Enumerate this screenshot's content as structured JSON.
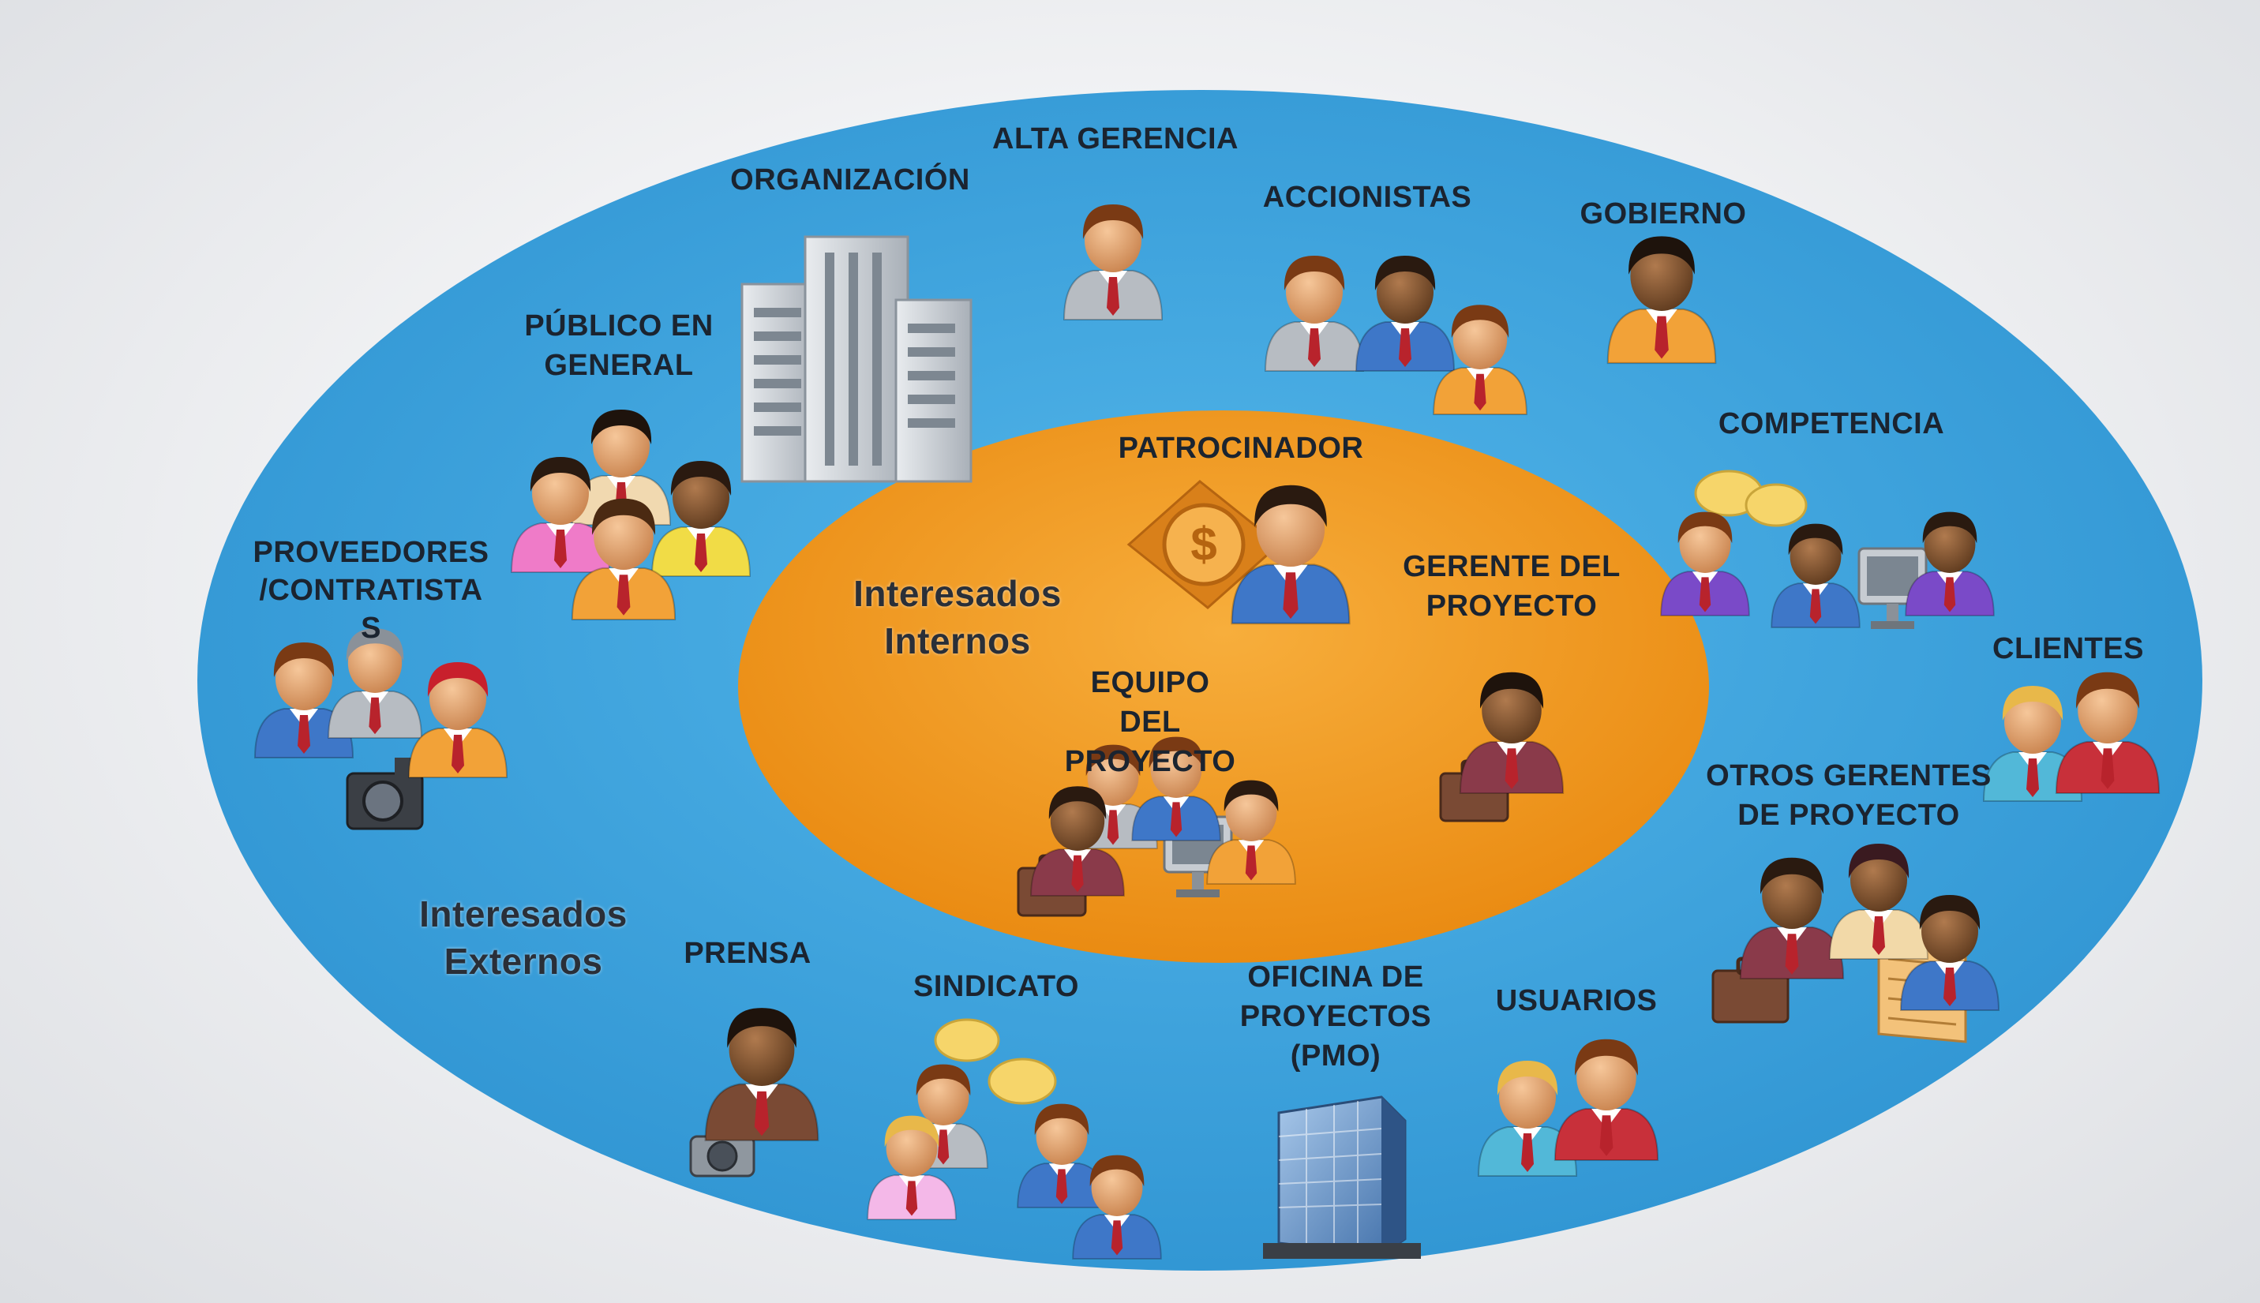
{
  "colors": {
    "outer_ellipse": "#3ea6e0",
    "inner_ellipse": "#f29a22",
    "label_text": "#1b2430"
  },
  "groups": {
    "internal": "Interesados\nInternos",
    "external": "Interesados\nExternos"
  },
  "internal_stakeholders": {
    "patrocinador": "PATROCINADOR",
    "gerente_proyecto": "GERENTE DEL\nPROYECTO",
    "equipo_proyecto": "EQUIPO\nDEL\nPROYECTO"
  },
  "external_stakeholders": {
    "alta_gerencia": "ALTA GERENCIA",
    "organizacion": "ORGANIZACIÓN",
    "accionistas": "ACCIONISTAS",
    "gobierno": "GOBIERNO",
    "publico_general": "PÚBLICO EN\nGENERAL",
    "competencia": "COMPETENCIA",
    "proveedores": "PROVEEDORES\n/CONTRATISTA\nS",
    "clientes": "CLIENTES",
    "otros_gerentes": "OTROS GERENTES\nDE PROYECTO",
    "prensa": "PRENSA",
    "sindicato": "SINDICATO",
    "pmo": "OFICINA DE\nPROYECTOS\n(PMO)",
    "usuarios": "USUARIOS"
  }
}
